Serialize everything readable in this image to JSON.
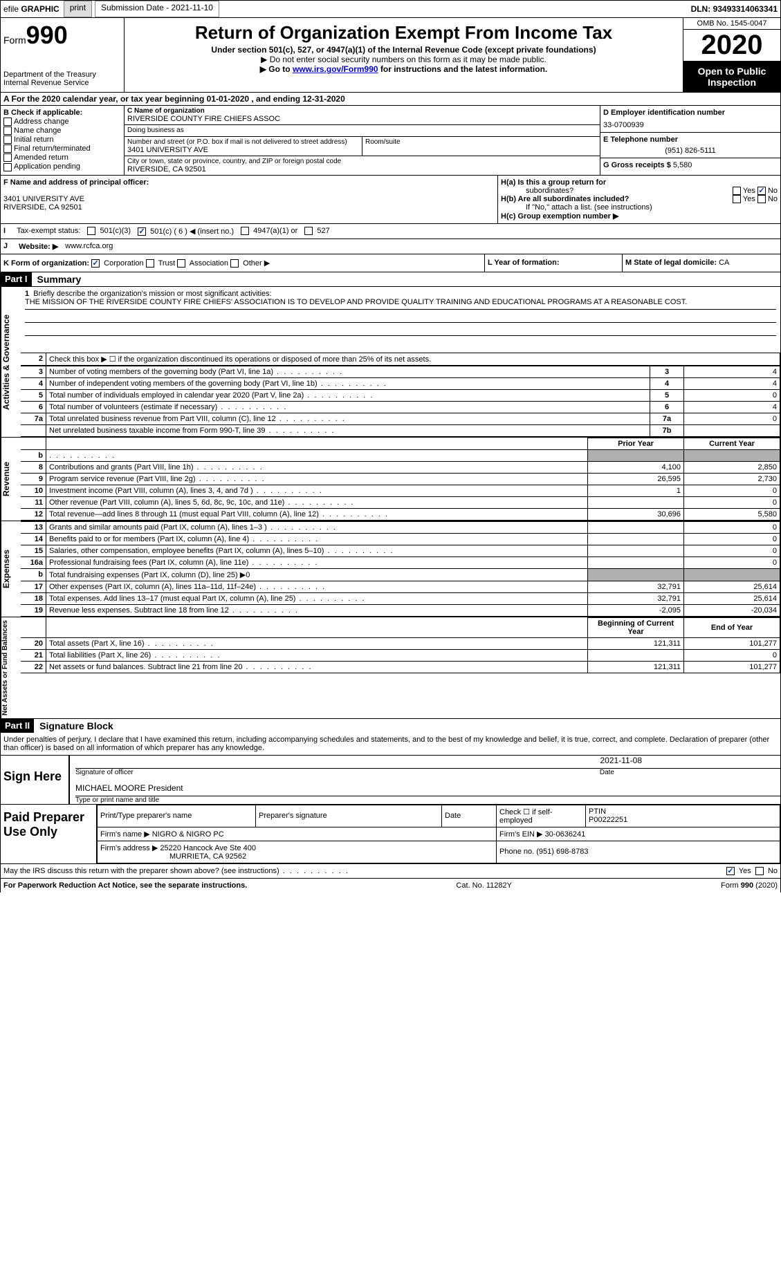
{
  "top_bar": {
    "efile": "efile",
    "graphic": "GRAPHIC",
    "print_btn": "print",
    "submission_label": "Submission Date - ",
    "submission_date": "2021-11-10",
    "dln_label": "DLN: ",
    "dln": "93493314063341"
  },
  "header": {
    "form_word": "Form",
    "form_number": "990",
    "dept": "Department of the Treasury",
    "irs": "Internal Revenue Service",
    "title": "Return of Organization Exempt From Income Tax",
    "sub1": "Under section 501(c), 527, or 4947(a)(1) of the Internal Revenue Code (except private foundations)",
    "sub2": "▶ Do not enter social security numbers on this form as it may be made public.",
    "sub3_pre": "▶ Go to ",
    "sub3_link": "www.irs.gov/Form990",
    "sub3_post": " for instructions and the latest information.",
    "omb": "OMB No. 1545-0047",
    "year": "2020",
    "open1": "Open to Public",
    "open2": "Inspection"
  },
  "row_a": "A For the 2020 calendar year, or tax year beginning 01-01-2020   , and ending 12-31-2020",
  "section_b": {
    "label": "B Check if applicable:",
    "addr_change": "Address change",
    "name_change": "Name change",
    "initial": "Initial return",
    "final": "Final return/terminated",
    "amended": "Amended return",
    "app_pending": "Application pending"
  },
  "section_c": {
    "name_label": "C Name of organization",
    "name_val": "RIVERSIDE COUNTY FIRE CHIEFS ASSOC",
    "dba_label": "Doing business as",
    "dba_val": "",
    "addr_label": "Number and street (or P.O. box if mail is not delivered to street address)",
    "addr_val": "3401 UNIVERSITY AVE",
    "room_label": "Room/suite",
    "room_val": "",
    "city_label": "City or town, state or province, country, and ZIP or foreign postal code",
    "city_val": "RIVERSIDE, CA  92501"
  },
  "section_d": {
    "ein_label": "D Employer identification number",
    "ein_val": "33-0700939",
    "tel_label": "E Telephone number",
    "tel_val": "(951) 826-5111",
    "gross_label": "G Gross receipts $ ",
    "gross_val": "5,580"
  },
  "section_f": {
    "label": "F Name and address of principal officer:",
    "line1": "3401 UNIVERSITY AVE",
    "line2": "RIVERSIDE, CA  92501"
  },
  "section_h": {
    "ha_label": "H(a)  Is this a group return for",
    "ha_sub": "subordinates?",
    "hb_label": "H(b)  Are all subordinates included?",
    "hb_note": "If \"No,\" attach a list. (see instructions)",
    "hc_label": "H(c)  Group exemption number ▶",
    "yes": "Yes",
    "no": "No"
  },
  "row_i": {
    "label": "I",
    "text": "Tax-exempt status:",
    "opt1": "501(c)(3)",
    "opt2": "501(c) ( 6 ) ◀ (insert no.)",
    "opt3": "4947(a)(1) or",
    "opt4": "527"
  },
  "row_j": {
    "label": "J",
    "text": "Website: ▶",
    "val": "www.rcfca.org"
  },
  "row_k": {
    "label": "K Form of organization:",
    "corp": "Corporation",
    "trust": "Trust",
    "assoc": "Association",
    "other": "Other ▶"
  },
  "row_l": {
    "label": "L Year of formation:",
    "val": ""
  },
  "row_m": {
    "label": "M State of legal domicile: ",
    "val": "CA"
  },
  "part1": {
    "hdr": "Part I",
    "title": "Summary"
  },
  "summary": {
    "line1_label": "1",
    "line1_text": "Briefly describe the organization's mission or most significant activities:",
    "line1_val": "THE MISSION OF THE RIVERSIDE COUNTY FIRE CHIEFS' ASSOCIATION IS TO DEVELOP AND PROVIDE QUALITY TRAINING AND EDUCATIONAL PROGRAMS AT A REASONABLE COST.",
    "line2_label": "2",
    "line2_text": "Check this box ▶ ☐ if the organization discontinued its operations or disposed of more than 25% of its net assets.",
    "rows_simple": [
      {
        "n": "3",
        "desc": "Number of voting members of the governing body (Part VI, line 1a)",
        "ref": "3",
        "val": "4"
      },
      {
        "n": "4",
        "desc": "Number of independent voting members of the governing body (Part VI, line 1b)",
        "ref": "4",
        "val": "4"
      },
      {
        "n": "5",
        "desc": "Total number of individuals employed in calendar year 2020 (Part V, line 2a)",
        "ref": "5",
        "val": "0"
      },
      {
        "n": "6",
        "desc": "Total number of volunteers (estimate if necessary)",
        "ref": "6",
        "val": "4"
      },
      {
        "n": "7a",
        "desc": "Total unrelated business revenue from Part VIII, column (C), line 12",
        "ref": "7a",
        "val": "0"
      },
      {
        "n": "",
        "desc": "Net unrelated business taxable income from Form 990-T, line 39",
        "ref": "7b",
        "val": ""
      }
    ],
    "col_prior": "Prior Year",
    "col_current": "Current Year",
    "col_begin": "Beginning of Current Year",
    "col_end": "End of Year",
    "side_activities": "Activities & Governance",
    "side_revenue": "Revenue",
    "side_expenses": "Expenses",
    "side_netassets": "Net Assets or Fund Balances",
    "rows_rev": [
      {
        "n": "b",
        "desc": "",
        "prior": "",
        "curr": "",
        "shaded": true
      },
      {
        "n": "8",
        "desc": "Contributions and grants (Part VIII, line 1h)",
        "prior": "4,100",
        "curr": "2,850"
      },
      {
        "n": "9",
        "desc": "Program service revenue (Part VIII, line 2g)",
        "prior": "26,595",
        "curr": "2,730"
      },
      {
        "n": "10",
        "desc": "Investment income (Part VIII, column (A), lines 3, 4, and 7d )",
        "prior": "1",
        "curr": "0"
      },
      {
        "n": "11",
        "desc": "Other revenue (Part VIII, column (A), lines 5, 6d, 8c, 9c, 10c, and 11e)",
        "prior": "",
        "curr": "0"
      },
      {
        "n": "12",
        "desc": "Total revenue—add lines 8 through 11 (must equal Part VIII, column (A), line 12)",
        "prior": "30,696",
        "curr": "5,580"
      }
    ],
    "rows_exp": [
      {
        "n": "13",
        "desc": "Grants and similar amounts paid (Part IX, column (A), lines 1–3 )",
        "prior": "",
        "curr": "0"
      },
      {
        "n": "14",
        "desc": "Benefits paid to or for members (Part IX, column (A), line 4)",
        "prior": "",
        "curr": "0"
      },
      {
        "n": "15",
        "desc": "Salaries, other compensation, employee benefits (Part IX, column (A), lines 5–10)",
        "prior": "",
        "curr": "0"
      },
      {
        "n": "16a",
        "desc": "Professional fundraising fees (Part IX, column (A), line 11e)",
        "prior": "",
        "curr": "0"
      },
      {
        "n": "b",
        "desc": "Total fundraising expenses (Part IX, column (D), line 25) ▶0",
        "prior": "",
        "curr": "",
        "shaded": true
      },
      {
        "n": "17",
        "desc": "Other expenses (Part IX, column (A), lines 11a–11d, 11f–24e)",
        "prior": "32,791",
        "curr": "25,614"
      },
      {
        "n": "18",
        "desc": "Total expenses. Add lines 13–17 (must equal Part IX, column (A), line 25)",
        "prior": "32,791",
        "curr": "25,614"
      },
      {
        "n": "19",
        "desc": "Revenue less expenses. Subtract line 18 from line 12",
        "prior": "-2,095",
        "curr": "-20,034"
      }
    ],
    "rows_net": [
      {
        "n": "20",
        "desc": "Total assets (Part X, line 16)",
        "prior": "121,311",
        "curr": "101,277"
      },
      {
        "n": "21",
        "desc": "Total liabilities (Part X, line 26)",
        "prior": "",
        "curr": "0"
      },
      {
        "n": "22",
        "desc": "Net assets or fund balances. Subtract line 21 from line 20",
        "prior": "121,311",
        "curr": "101,277"
      }
    ]
  },
  "part2": {
    "hdr": "Part II",
    "title": "Signature Block"
  },
  "sig": {
    "penalty": "Under penalties of perjury, I declare that I have examined this return, including accompanying schedules and statements, and to the best of my knowledge and belief, it is true, correct, and complete. Declaration of preparer (other than officer) is based on all information of which preparer has any knowledge.",
    "sign_here": "Sign Here",
    "date_val": "2021-11-08",
    "sig_officer": "Signature of officer",
    "date_lbl": "Date",
    "officer_name": "MICHAEL MOORE  President",
    "officer_type": "Type or print name and title"
  },
  "paid": {
    "label": "Paid Preparer Use Only",
    "headers": {
      "name": "Print/Type preparer's name",
      "sig": "Preparer's signature",
      "date": "Date",
      "check": "Check ☐ if self-employed",
      "ptin_lbl": "PTIN",
      "ptin": "P00222251"
    },
    "firm_name_lbl": "Firm's name    ▶ ",
    "firm_name": "NIGRO & NIGRO PC",
    "firm_ein_lbl": "Firm's EIN ▶ ",
    "firm_ein": "30-0636241",
    "firm_addr_lbl": "Firm's address ▶",
    "firm_addr1": "25220 Hancock Ave Ste 400",
    "firm_addr2": "MURRIETA, CA  92562",
    "phone_lbl": "Phone no. ",
    "phone": "(951) 698-8783"
  },
  "discuss": {
    "text": "May the IRS discuss this return with the preparer shown above? (see instructions)",
    "yes": "Yes",
    "no": "No"
  },
  "footer": {
    "left": "For Paperwork Reduction Act Notice, see the separate instructions.",
    "mid": "Cat. No. 11282Y",
    "right": "Form 990 (2020)"
  }
}
